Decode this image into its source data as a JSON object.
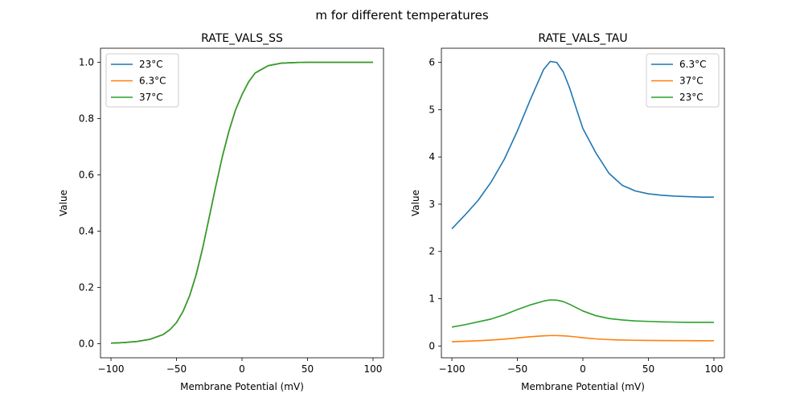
{
  "suptitle": "m for different temperatures",
  "chart_data": [
    {
      "type": "line",
      "title": "RATE_VALS_SS",
      "xlabel": "Membrane Potential (mV)",
      "ylabel": "Value",
      "xlim": [
        -108,
        108
      ],
      "ylim": [
        -0.05,
        1.05
      ],
      "xticks": [
        -100,
        -50,
        0,
        50,
        100
      ],
      "yticks": [
        0.0,
        0.2,
        0.4,
        0.6,
        0.8,
        1.0
      ],
      "ytick_labels": [
        "0.0",
        "0.2",
        "0.4",
        "0.6",
        "0.8",
        "1.0"
      ],
      "legend_position": "upper-left",
      "x": [
        -100,
        -90,
        -80,
        -70,
        -60,
        -55,
        -50,
        -45,
        -40,
        -35,
        -30,
        -25,
        -20,
        -15,
        -10,
        -5,
        0,
        5,
        10,
        15,
        20,
        30,
        40,
        50,
        60,
        70,
        80,
        90,
        100
      ],
      "series": [
        {
          "name": "23°C",
          "color": "#1f77b4",
          "values": [
            0.002,
            0.004,
            0.008,
            0.016,
            0.033,
            0.05,
            0.075,
            0.115,
            0.17,
            0.245,
            0.34,
            0.45,
            0.56,
            0.665,
            0.755,
            0.83,
            0.885,
            0.93,
            0.962,
            0.975,
            0.988,
            0.997,
            0.999,
            1.0,
            1.0,
            1.0,
            1.0,
            1.0,
            1.0
          ]
        },
        {
          "name": "6.3°C",
          "color": "#ff7f0e",
          "values": [
            0.002,
            0.004,
            0.008,
            0.016,
            0.033,
            0.05,
            0.075,
            0.115,
            0.17,
            0.245,
            0.34,
            0.45,
            0.56,
            0.665,
            0.755,
            0.83,
            0.885,
            0.93,
            0.962,
            0.975,
            0.988,
            0.997,
            0.999,
            1.0,
            1.0,
            1.0,
            1.0,
            1.0,
            1.0
          ]
        },
        {
          "name": "37°C",
          "color": "#2ca02c",
          "values": [
            0.002,
            0.004,
            0.008,
            0.016,
            0.033,
            0.05,
            0.075,
            0.115,
            0.17,
            0.245,
            0.34,
            0.45,
            0.56,
            0.665,
            0.755,
            0.83,
            0.885,
            0.93,
            0.962,
            0.975,
            0.988,
            0.997,
            0.999,
            1.0,
            1.0,
            1.0,
            1.0,
            1.0,
            1.0
          ]
        }
      ]
    },
    {
      "type": "line",
      "title": "RATE_VALS_TAU",
      "xlabel": "Membrane Potential (mV)",
      "ylabel": "Value",
      "xlim": [
        -108,
        108
      ],
      "ylim": [
        -0.25,
        6.3
      ],
      "xticks": [
        -100,
        -50,
        0,
        50,
        100
      ],
      "yticks": [
        0,
        1,
        2,
        3,
        4,
        5,
        6
      ],
      "ytick_labels": [
        "0",
        "1",
        "2",
        "3",
        "4",
        "5",
        "6"
      ],
      "legend_position": "upper-right",
      "x": [
        -100,
        -90,
        -80,
        -70,
        -60,
        -50,
        -40,
        -30,
        -25,
        -20,
        -15,
        -10,
        -5,
        0,
        10,
        20,
        30,
        40,
        50,
        60,
        70,
        80,
        90,
        100
      ],
      "series": [
        {
          "name": "6.3°C",
          "color": "#1f77b4",
          "values": [
            2.48,
            2.77,
            3.08,
            3.47,
            3.95,
            4.55,
            5.22,
            5.85,
            6.02,
            6.0,
            5.8,
            5.45,
            5.02,
            4.6,
            4.08,
            3.65,
            3.4,
            3.28,
            3.22,
            3.19,
            3.17,
            3.16,
            3.15,
            3.15
          ]
        },
        {
          "name": "37°C",
          "color": "#ff7f0e",
          "values": [
            0.09,
            0.1,
            0.11,
            0.125,
            0.145,
            0.17,
            0.195,
            0.215,
            0.22,
            0.22,
            0.215,
            0.205,
            0.19,
            0.175,
            0.15,
            0.135,
            0.125,
            0.12,
            0.117,
            0.115,
            0.113,
            0.112,
            0.111,
            0.11
          ]
        },
        {
          "name": "23°C",
          "color": "#2ca02c",
          "values": [
            0.4,
            0.45,
            0.51,
            0.57,
            0.66,
            0.77,
            0.87,
            0.95,
            0.975,
            0.97,
            0.94,
            0.88,
            0.81,
            0.74,
            0.64,
            0.58,
            0.55,
            0.53,
            0.52,
            0.51,
            0.505,
            0.5,
            0.5,
            0.5
          ]
        }
      ]
    }
  ]
}
